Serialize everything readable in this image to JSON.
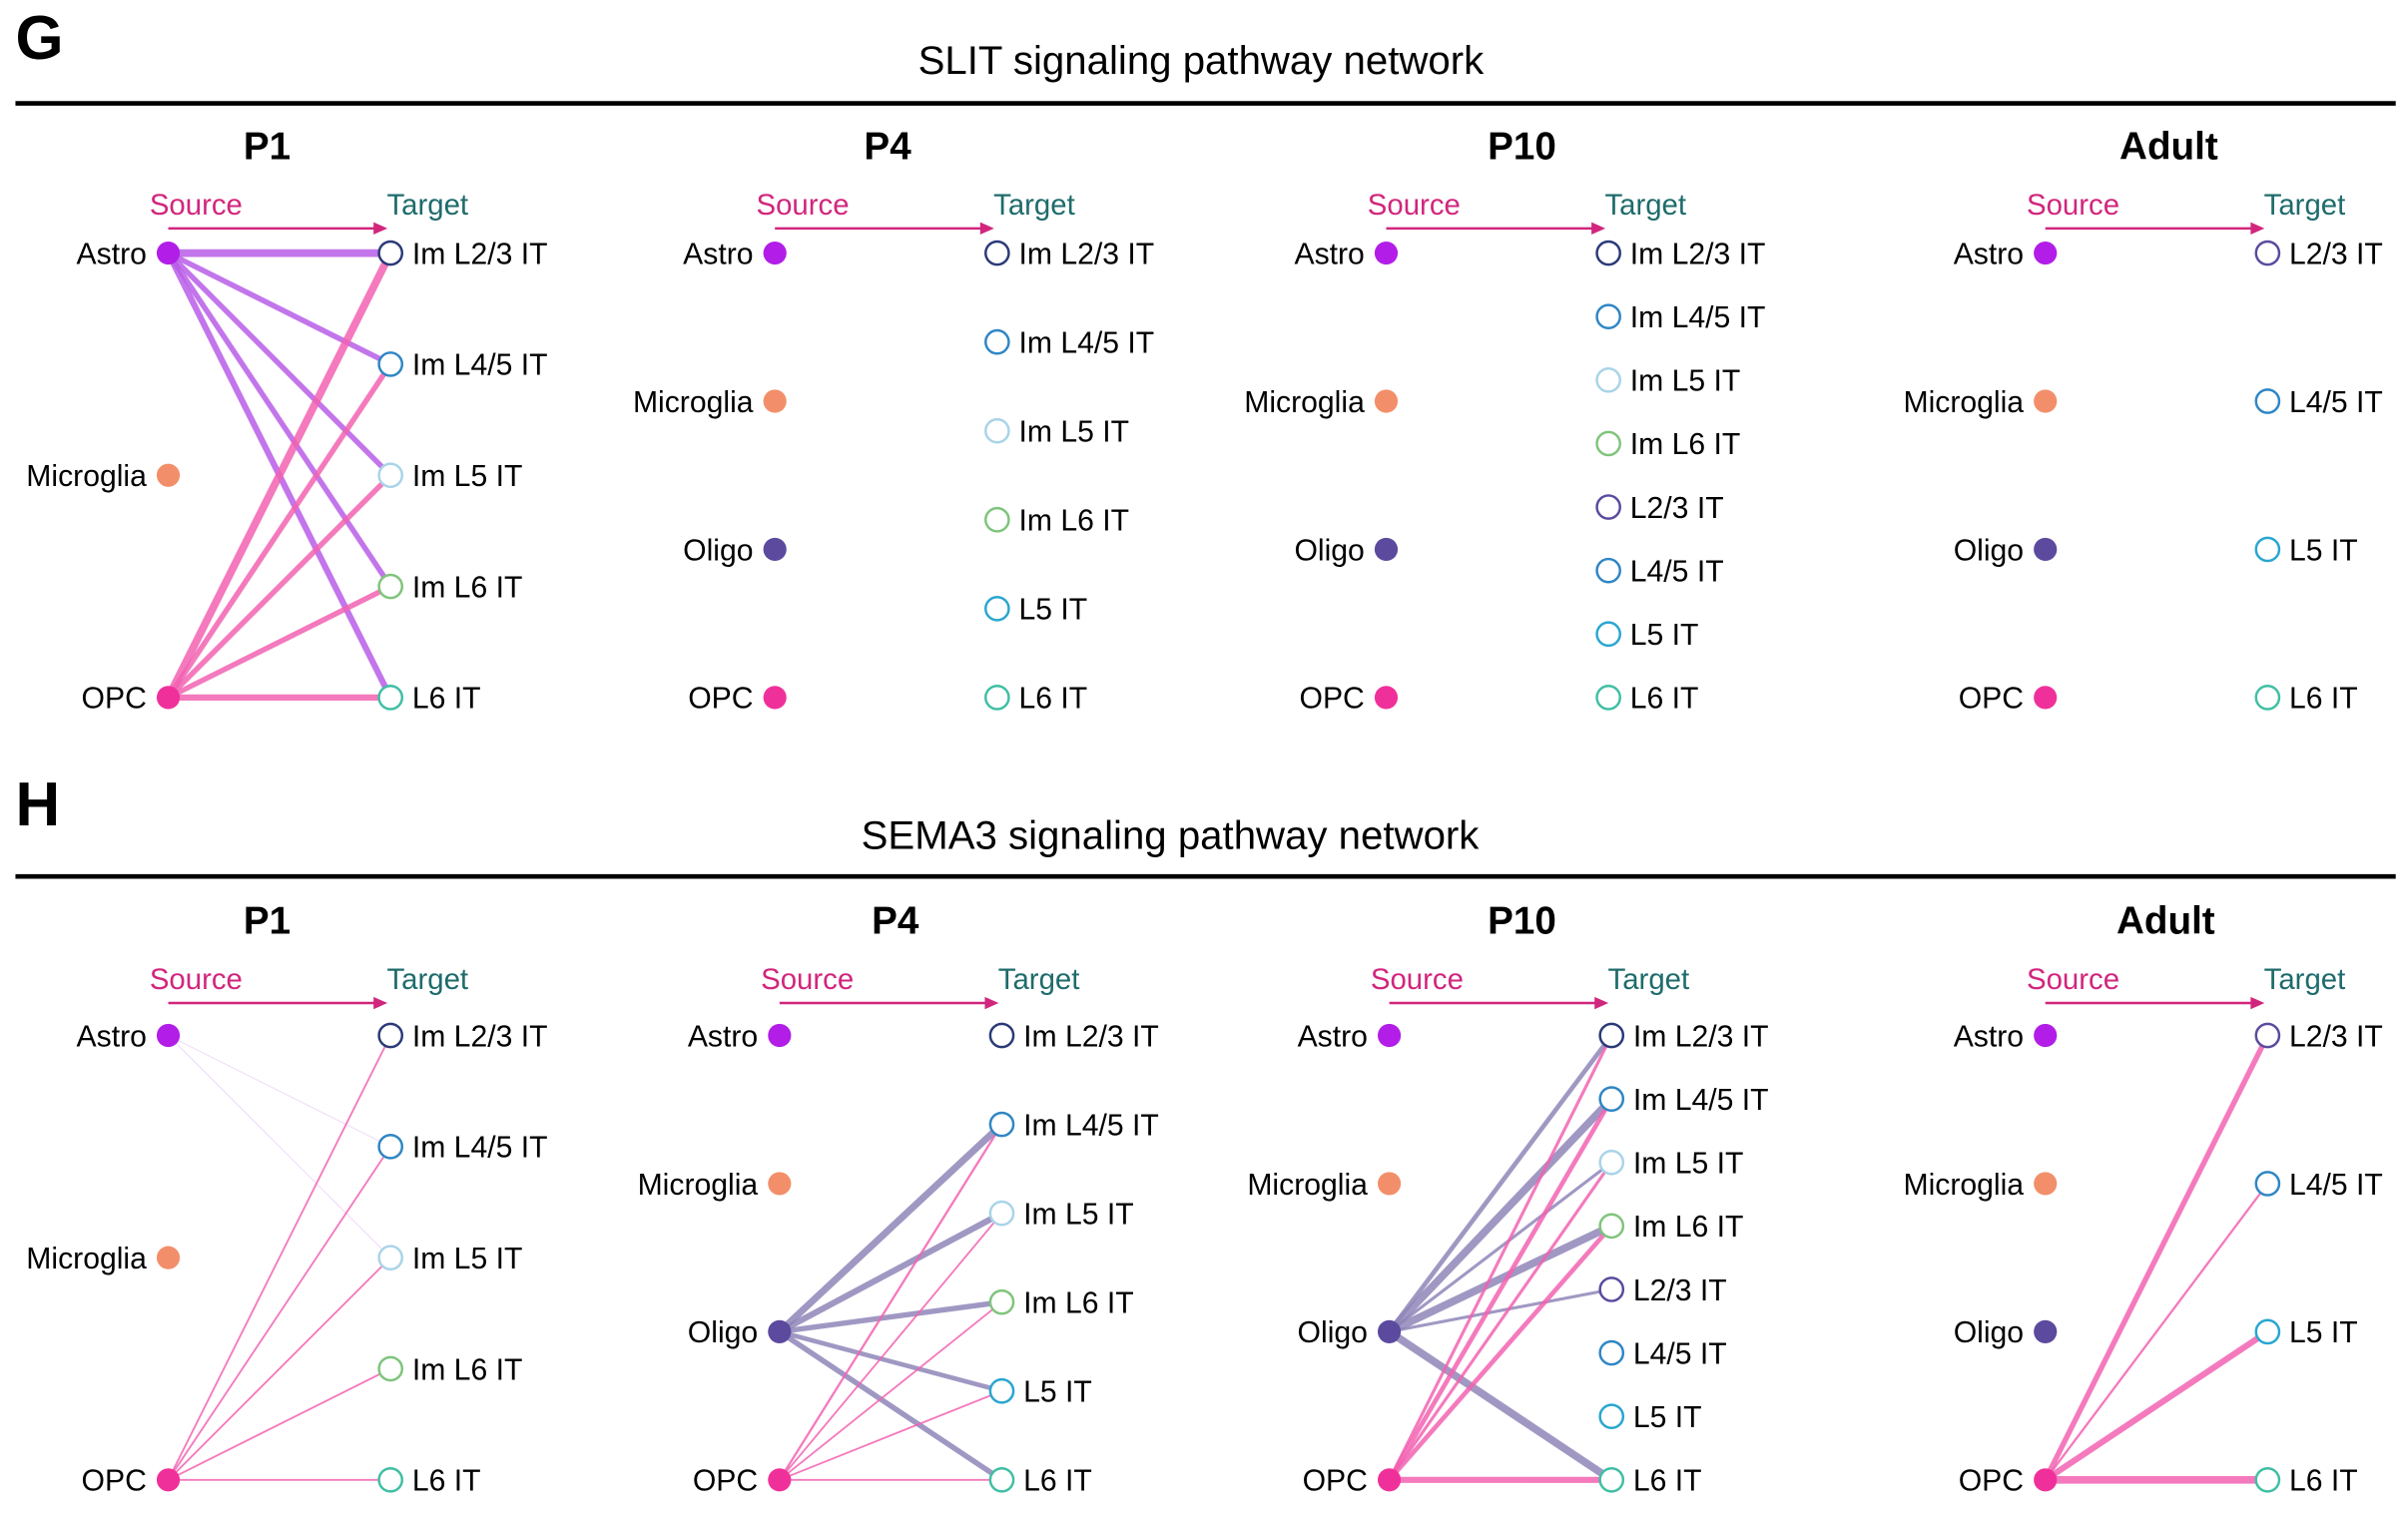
{
  "colors": {
    "src_header": "#d1267d",
    "tgt_header": "#1f6b6b",
    "header_arrow": "#d1267d",
    "rule": "#000000",
    "sources": {
      "Astro": "#b21ee8",
      "Microglia": "#f28f6a",
      "Oligo": "#5b4a9e",
      "OPC": "#f0309a"
    },
    "targets": {
      "Im L2/3 IT": "#2a3a78",
      "Im L4/5 IT": "#2f86c4",
      "Im L5 IT": "#a9d4e8",
      "Im L6 IT": "#7fc47c",
      "L2/3 IT": "#5b4a9e",
      "L4/5 IT": "#2f86c4",
      "L5 IT": "#29a6d0",
      "L6 IT": "#3fbfa4"
    },
    "edges": {
      "Astro": "#b95de8",
      "OPC": "#f263b2",
      "Oligo": "#8f86b8"
    }
  },
  "sections": [
    {
      "letter": "G",
      "title": "SLIT signaling pathway network",
      "panels": [
        {
          "title": "P1",
          "source_header": "Source",
          "target_header": "Target",
          "sources": [
            "Astro",
            "Microglia",
            "OPC"
          ],
          "targets": [
            "Im L2/3 IT",
            "Im L4/5 IT",
            "Im L5 IT",
            "Im L6 IT",
            "L6 IT"
          ],
          "edges": [
            {
              "from": "Astro",
              "to": "Im L2/3 IT",
              "weight": 5
            },
            {
              "from": "Astro",
              "to": "Im L4/5 IT",
              "weight": 3.5
            },
            {
              "from": "Astro",
              "to": "Im L5 IT",
              "weight": 3.5
            },
            {
              "from": "Astro",
              "to": "Im L6 IT",
              "weight": 3.5
            },
            {
              "from": "Astro",
              "to": "L6 IT",
              "weight": 4
            },
            {
              "from": "OPC",
              "to": "Im L2/3 IT",
              "weight": 5
            },
            {
              "from": "OPC",
              "to": "Im L4/5 IT",
              "weight": 3.5
            },
            {
              "from": "OPC",
              "to": "Im L5 IT",
              "weight": 3.5
            },
            {
              "from": "OPC",
              "to": "Im L6 IT",
              "weight": 3.5
            },
            {
              "from": "OPC",
              "to": "L6 IT",
              "weight": 4
            }
          ]
        },
        {
          "title": "P4",
          "source_header": "Source",
          "target_header": "Target",
          "sources": [
            "Astro",
            "Microglia",
            "Oligo",
            "OPC"
          ],
          "targets": [
            "Im L2/3 IT",
            "Im L4/5 IT",
            "Im L5 IT",
            "Im L6 IT",
            "L5 IT",
            "L6 IT"
          ],
          "edges": []
        },
        {
          "title": "P10",
          "source_header": "Source",
          "target_header": "Target",
          "sources": [
            "Astro",
            "Microglia",
            "Oligo",
            "OPC"
          ],
          "targets": [
            "Im L2/3 IT",
            "Im L4/5 IT",
            "Im L5 IT",
            "Im L6 IT",
            "L2/3 IT",
            "L4/5 IT",
            "L5 IT",
            "L6 IT"
          ],
          "edges": []
        },
        {
          "title": "Adult",
          "source_header": "Source",
          "target_header": "Target",
          "sources": [
            "Astro",
            "Microglia",
            "Oligo",
            "OPC"
          ],
          "targets": [
            "L2/3 IT",
            "L4/5 IT",
            "L5 IT",
            "L6 IT"
          ],
          "edges": []
        }
      ]
    },
    {
      "letter": "H",
      "title": "SEMA3 signaling pathway network",
      "panels": [
        {
          "title": "P1",
          "source_header": "Source",
          "target_header": "Target",
          "sources": [
            "Astro",
            "Microglia",
            "OPC"
          ],
          "targets": [
            "Im L2/3 IT",
            "Im L4/5 IT",
            "Im L5 IT",
            "Im L6 IT",
            "L6 IT"
          ],
          "edges": [
            {
              "from": "Astro",
              "to": "Im L4/5 IT",
              "weight": 0.6,
              "opacity": 0.25
            },
            {
              "from": "Astro",
              "to": "Im L5 IT",
              "weight": 0.6,
              "opacity": 0.25
            },
            {
              "from": "OPC",
              "to": "Im L2/3 IT",
              "weight": 1.2
            },
            {
              "from": "OPC",
              "to": "Im L4/5 IT",
              "weight": 1.2
            },
            {
              "from": "OPC",
              "to": "Im L5 IT",
              "weight": 1.2
            },
            {
              "from": "OPC",
              "to": "Im L6 IT",
              "weight": 1.2
            },
            {
              "from": "OPC",
              "to": "L6 IT",
              "weight": 1.2
            }
          ]
        },
        {
          "title": "P4",
          "source_header": "Source",
          "target_header": "Target",
          "sources": [
            "Astro",
            "Microglia",
            "Oligo",
            "OPC"
          ],
          "targets": [
            "Im L2/3 IT",
            "Im L4/5 IT",
            "Im L5 IT",
            "Im L6 IT",
            "L5 IT",
            "L6 IT"
          ],
          "edges": [
            {
              "from": "Oligo",
              "to": "Im L4/5 IT",
              "weight": 4.5
            },
            {
              "from": "Oligo",
              "to": "Im L5 IT",
              "weight": 4
            },
            {
              "from": "Oligo",
              "to": "Im L6 IT",
              "weight": 3.5
            },
            {
              "from": "Oligo",
              "to": "L5 IT",
              "weight": 3
            },
            {
              "from": "Oligo",
              "to": "L6 IT",
              "weight": 3.5
            },
            {
              "from": "OPC",
              "to": "Im L4/5 IT",
              "weight": 1.5
            },
            {
              "from": "OPC",
              "to": "Im L5 IT",
              "weight": 1.2
            },
            {
              "from": "OPC",
              "to": "Im L6 IT",
              "weight": 1.2
            },
            {
              "from": "OPC",
              "to": "L5 IT",
              "weight": 1.2
            },
            {
              "from": "OPC",
              "to": "L6 IT",
              "weight": 1.2
            }
          ]
        },
        {
          "title": "P10",
          "source_header": "Source",
          "target_header": "Target",
          "sources": [
            "Astro",
            "Microglia",
            "Oligo",
            "OPC"
          ],
          "targets": [
            "Im L2/3 IT",
            "Im L4/5 IT",
            "Im L5 IT",
            "Im L6 IT",
            "L2/3 IT",
            "L4/5 IT",
            "L5 IT",
            "L6 IT"
          ],
          "edges": [
            {
              "from": "Oligo",
              "to": "Im L2/3 IT",
              "weight": 3
            },
            {
              "from": "Oligo",
              "to": "Im L4/5 IT",
              "weight": 5
            },
            {
              "from": "Oligo",
              "to": "Im L5 IT",
              "weight": 2
            },
            {
              "from": "Oligo",
              "to": "Im L6 IT",
              "weight": 5
            },
            {
              "from": "Oligo",
              "to": "L2/3 IT",
              "weight": 2
            },
            {
              "from": "Oligo",
              "to": "L6 IT",
              "weight": 5
            },
            {
              "from": "OPC",
              "to": "Im L2/3 IT",
              "weight": 2
            },
            {
              "from": "OPC",
              "to": "Im L4/5 IT",
              "weight": 3
            },
            {
              "from": "OPC",
              "to": "Im L5 IT",
              "weight": 2
            },
            {
              "from": "OPC",
              "to": "Im L6 IT",
              "weight": 3
            },
            {
              "from": "OPC",
              "to": "L6 IT",
              "weight": 4
            }
          ]
        },
        {
          "title": "Adult",
          "source_header": "Source",
          "target_header": "Target",
          "sources": [
            "Astro",
            "Microglia",
            "Oligo",
            "OPC"
          ],
          "targets": [
            "L2/3 IT",
            "L4/5 IT",
            "L5 IT",
            "L6 IT"
          ],
          "edges": [
            {
              "from": "OPC",
              "to": "L2/3 IT",
              "weight": 3.5
            },
            {
              "from": "OPC",
              "to": "L4/5 IT",
              "weight": 1.5
            },
            {
              "from": "OPC",
              "to": "L5 IT",
              "weight": 4
            },
            {
              "from": "OPC",
              "to": "L6 IT",
              "weight": 5
            }
          ]
        }
      ]
    }
  ]
}
